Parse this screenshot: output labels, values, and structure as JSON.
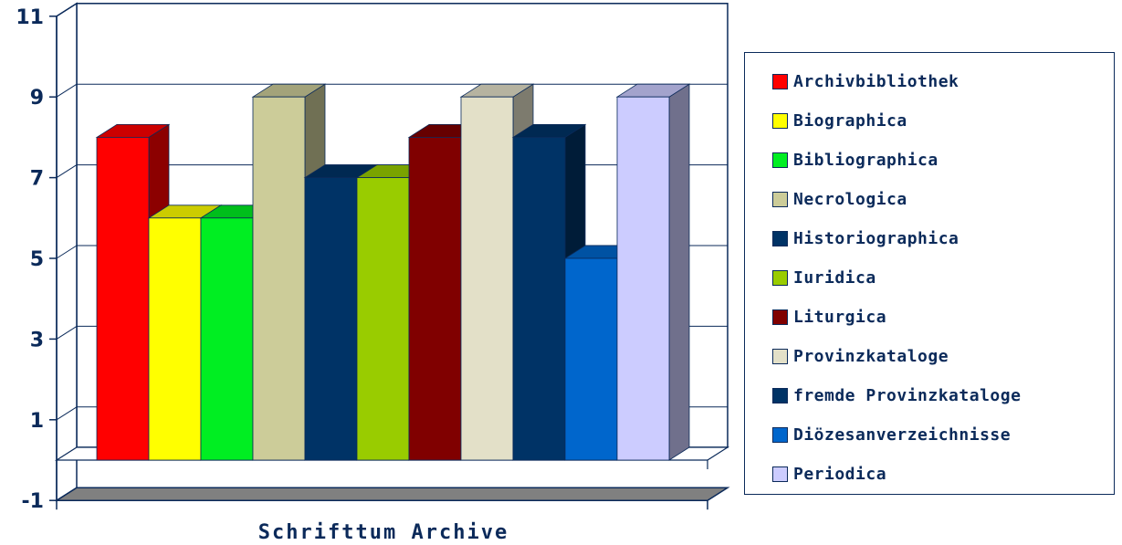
{
  "chart_data": {
    "type": "bar",
    "xlabel": "Schrifttum Archive",
    "ylabel": "",
    "ylim": [
      -1,
      11
    ],
    "yticks": [
      11,
      9,
      7,
      5,
      3,
      1,
      -1
    ],
    "grid": true,
    "legend_position": "right",
    "series": [
      {
        "name": "Archivbibliothek",
        "value": 8,
        "color": "#ff0000"
      },
      {
        "name": "Biographica",
        "value": 6,
        "color": "#ffff00"
      },
      {
        "name": "Bibliographica",
        "value": 6,
        "color": "#00ee22"
      },
      {
        "name": "Necrologica",
        "value": 9,
        "color": "#cccc99"
      },
      {
        "name": "Historiographica",
        "value": 7,
        "color": "#003366"
      },
      {
        "name": "Iuridica",
        "value": 7,
        "color": "#99cc00"
      },
      {
        "name": "Liturgica",
        "value": 8,
        "color": "#800000"
      },
      {
        "name": "Provinzkataloge",
        "value": 9,
        "color": "#e3e0c8"
      },
      {
        "name": "fremde Provinzkataloge",
        "value": 8,
        "color": "#003366"
      },
      {
        "name": "Diözesanverzeichnisse",
        "value": 5,
        "color": "#0066cc"
      },
      {
        "name": "Periodica",
        "value": 9,
        "color": "#ccccff"
      }
    ]
  },
  "legend_labels": {
    "l0": "Archivbibliothek",
    "l1": "Biographica",
    "l2": "Bibliographica",
    "l3": "Necrologica",
    "l4": "Historiographica",
    "l5": "Iuridica",
    "l6": "Liturgica",
    "l7": "Provinzkataloge",
    "l8": "fremde Provinzkataloge",
    "l9": "Diözesanverzeichnisse",
    "l10": "Periodica"
  },
  "axis_title": "Schrifttum Archive"
}
